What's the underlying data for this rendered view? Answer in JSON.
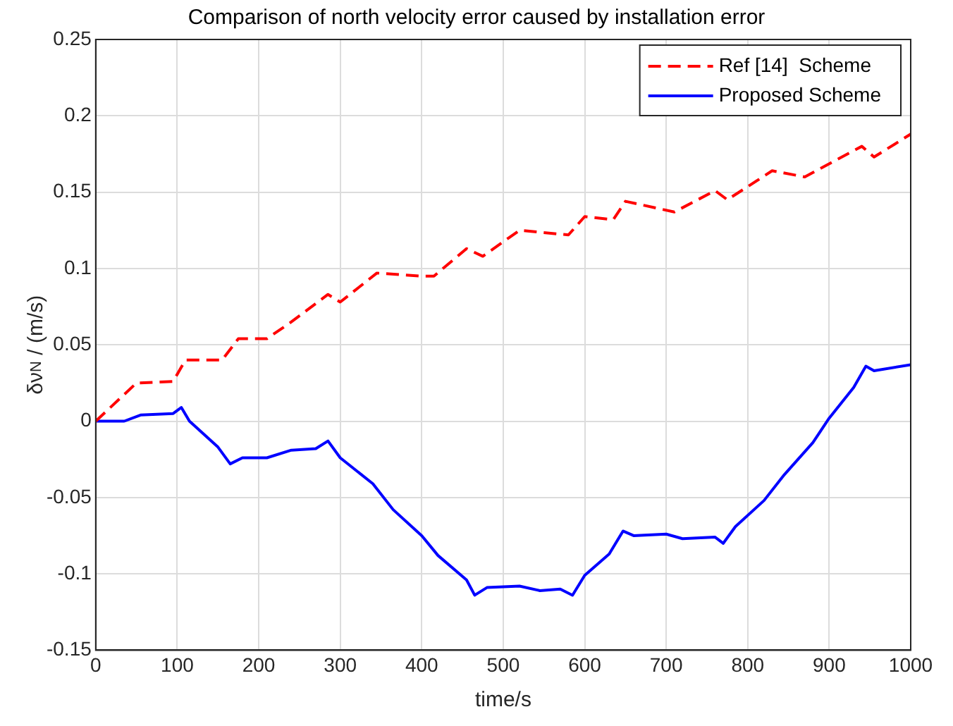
{
  "chart_data": {
    "type": "line",
    "title": "Comparison of north velocity error caused by installation error",
    "xlabel": "time/s",
    "ylabel": "δν$_{N}$ / (m/s)",
    "xlim": [
      0,
      1000
    ],
    "xticks": [
      0,
      100,
      200,
      300,
      400,
      500,
      600,
      700,
      800,
      900,
      1000
    ],
    "ylim": [
      -0.15,
      0.25
    ],
    "yticks": [
      -0.15,
      -0.1,
      -0.05,
      0,
      0.05,
      0.1,
      0.15,
      0.2,
      0.25
    ],
    "grid": true,
    "legend": "top right",
    "marker": "none",
    "series": [
      {
        "name": "Ref [14]  Scheme",
        "color": "#ff0000",
        "line_style": "dashed",
        "x": [
          0,
          50,
          95,
          110,
          155,
          175,
          210,
          240,
          285,
          300,
          345,
          400,
          415,
          455,
          475,
          520,
          580,
          600,
          635,
          650,
          710,
          760,
          775,
          830,
          870,
          940,
          955,
          1000
        ],
        "values": [
          0,
          0.025,
          0.026,
          0.04,
          0.04,
          0.054,
          0.054,
          0.065,
          0.083,
          0.078,
          0.097,
          0.095,
          0.095,
          0.113,
          0.108,
          0.125,
          0.122,
          0.134,
          0.132,
          0.144,
          0.137,
          0.151,
          0.145,
          0.164,
          0.16,
          0.18,
          0.173,
          0.188
        ]
      },
      {
        "name": "Proposed Scheme",
        "color": "#0000ff",
        "line_style": "solid",
        "x": [
          0,
          35,
          55,
          95,
          105,
          115,
          150,
          165,
          180,
          210,
          240,
          270,
          285,
          300,
          340,
          365,
          400,
          420,
          455,
          465,
          480,
          520,
          545,
          570,
          585,
          600,
          630,
          647,
          660,
          700,
          720,
          760,
          770,
          785,
          820,
          845,
          880,
          900,
          930,
          945,
          955,
          1000
        ],
        "values": [
          0,
          0,
          0.004,
          0.005,
          0.009,
          0,
          -0.017,
          -0.028,
          -0.024,
          -0.024,
          -0.019,
          -0.018,
          -0.013,
          -0.024,
          -0.041,
          -0.058,
          -0.075,
          -0.088,
          -0.104,
          -0.114,
          -0.109,
          -0.108,
          -0.111,
          -0.11,
          -0.114,
          -0.101,
          -0.087,
          -0.072,
          -0.075,
          -0.074,
          -0.077,
          -0.076,
          -0.08,
          -0.069,
          -0.052,
          -0.035,
          -0.014,
          0.002,
          0.022,
          0.036,
          0.033,
          0.037
        ]
      }
    ]
  }
}
